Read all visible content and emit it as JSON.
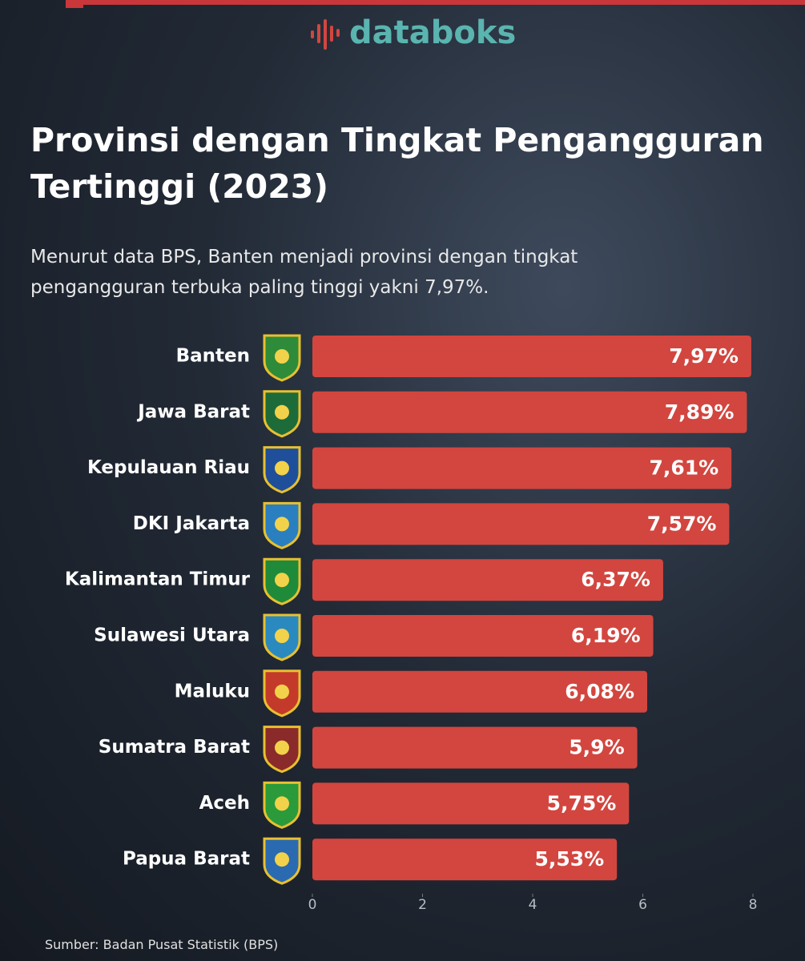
{
  "brand": "databoks",
  "chart_data": {
    "type": "bar",
    "orientation": "horizontal",
    "title": "Provinsi dengan Tingkat Pengangguran Tertinggi (2023)",
    "subtitle": "Menurut data BPS, Banten menjadi provinsi dengan tingkat pengangguran terbuka paling tinggi yakni 7,97%.",
    "categories": [
      "Banten",
      "Jawa Barat",
      "Kepulauan Riau",
      "DKI Jakarta",
      "Kalimantan Timur",
      "Sulawesi Utara",
      "Maluku",
      "Sumatra Barat",
      "Aceh",
      "Papua Barat"
    ],
    "values": [
      7.97,
      7.89,
      7.61,
      7.57,
      6.37,
      6.19,
      6.08,
      5.9,
      5.75,
      5.53
    ],
    "value_labels": [
      "7,97%",
      "7,89%",
      "7,61%",
      "7,57%",
      "6,37%",
      "6,19%",
      "6,08%",
      "5,9%",
      "5,75%",
      "5,53%"
    ],
    "color": "#d2463f",
    "xlim": [
      0,
      8
    ],
    "xticks": [
      0,
      2,
      4,
      6,
      8
    ],
    "grid": false,
    "source": "Sumber: Badan Pusat Statistik (BPS)"
  }
}
